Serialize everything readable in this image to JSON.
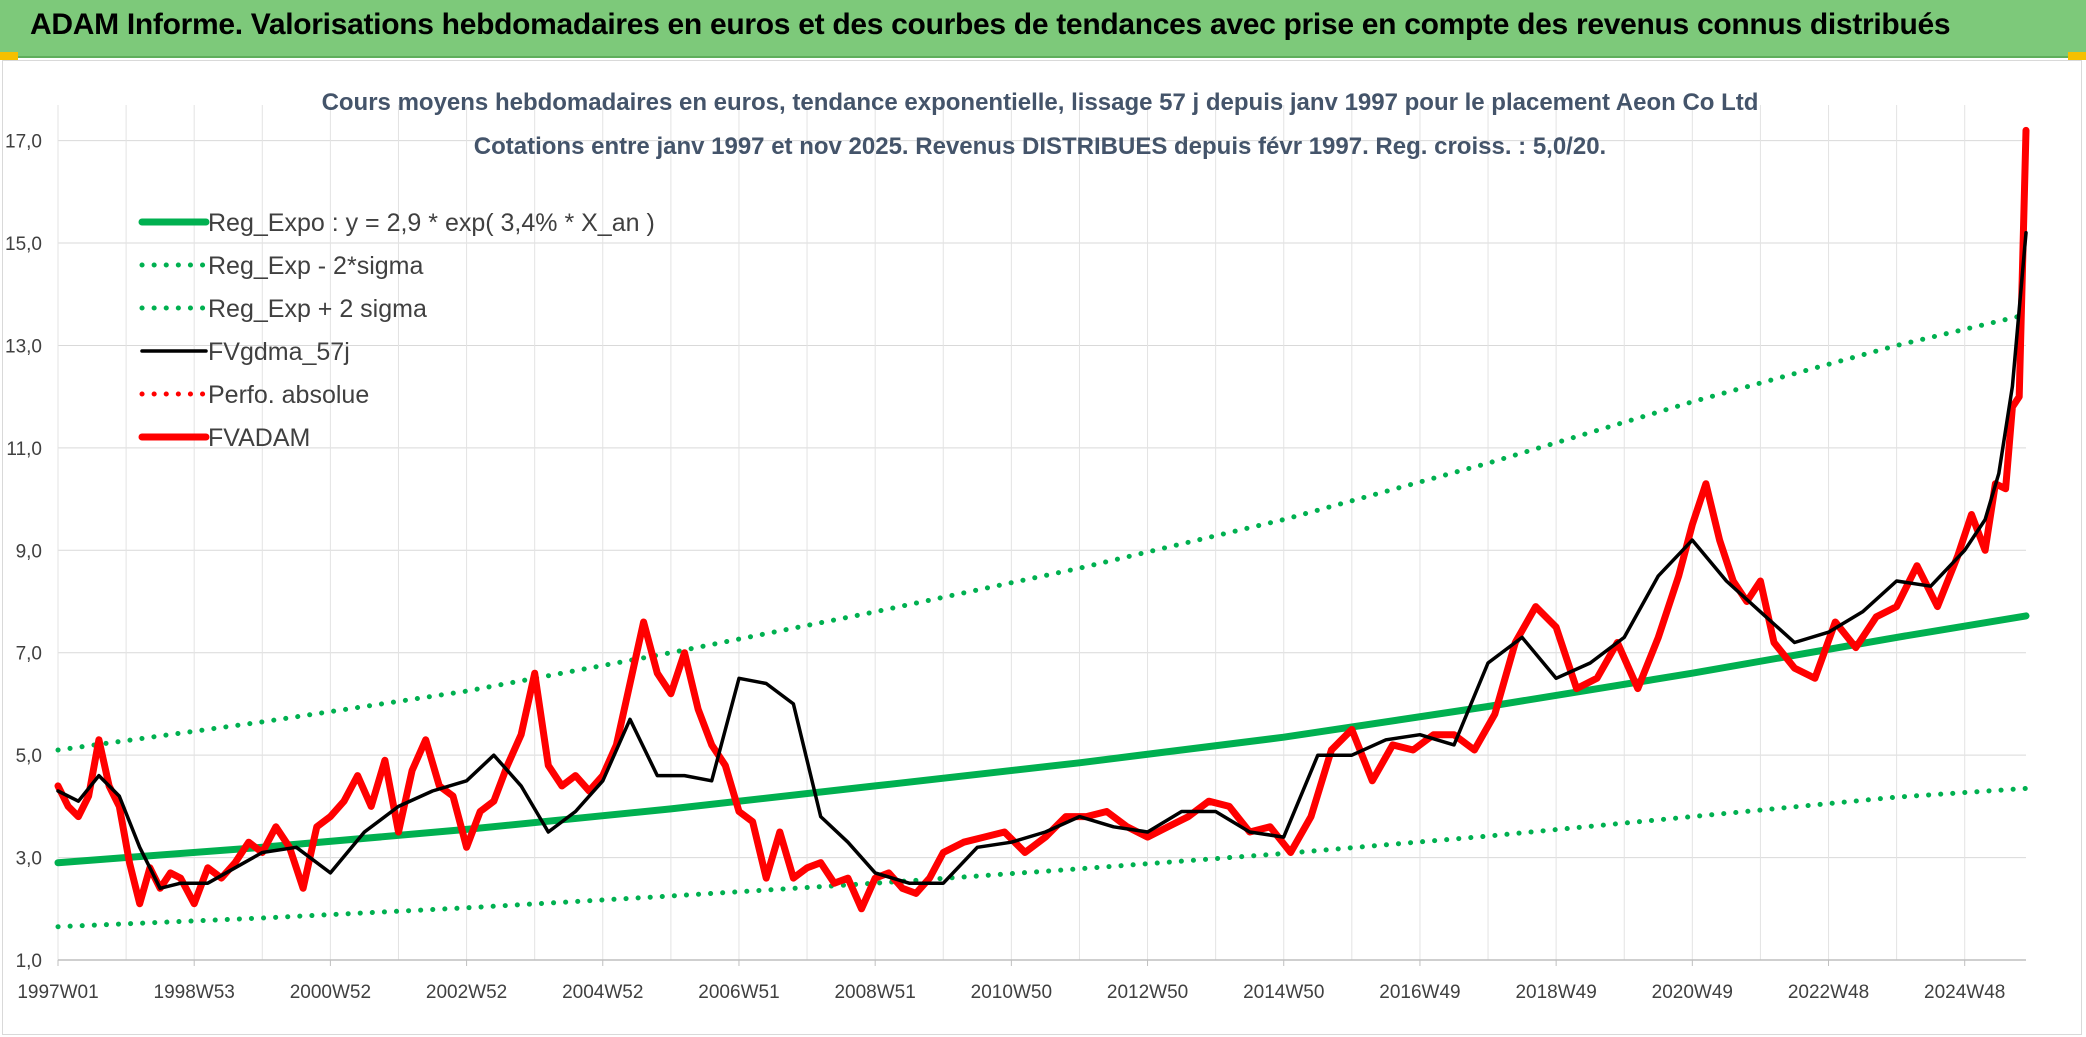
{
  "banner": {
    "title": "ADAM Informe. Valorisations hebdomadaires en euros et des courbes de tendances avec prise en compte des revenus connus distribués"
  },
  "colors": {
    "banner_bg": "#7dc97a",
    "regression": "#00b050",
    "smoothed": "#000000",
    "price": "#ff0000",
    "grid": "#d9d9d9"
  },
  "chart_data": {
    "type": "line",
    "title": "Cours moyens hebdomadaires en euros, tendance exponentielle, lissage 57 j depuis janv 1997 pour le placement Aeon Co Ltd",
    "subtitle": "Cotations entre janv 1997 et nov 2025. Revenus DISTRIBUES depuis févr 1997. Reg. croiss. : 5,0/20.",
    "xlabel": "",
    "ylabel": "",
    "ylim": [
      1,
      17.5
    ],
    "y_ticks": [
      "1,0",
      "3,0",
      "5,0",
      "7,0",
      "9,0",
      "11,0",
      "13,0",
      "15,0",
      "17,0"
    ],
    "x_ticks": [
      "1997W01",
      "1998W53",
      "2000W52",
      "2002W52",
      "2004W52",
      "2006W51",
      "2008W51",
      "2010W50",
      "2012W50",
      "2014W50",
      "2016W49",
      "2018W49",
      "2020W49",
      "2022W48",
      "2024W48"
    ],
    "x_tick_years": [
      1997.0,
      1999.0,
      2001.0,
      2003.0,
      2005.0,
      2007.0,
      2009.0,
      2011.0,
      2013.0,
      2015.0,
      2017.0,
      2019.0,
      2021.0,
      2023.0,
      2025.0
    ],
    "xlim": [
      1997.0,
      2025.9
    ],
    "grid": true,
    "legend_position": "top-left",
    "series": [
      {
        "name": "Reg_Expo : y = 2,9 * exp( 3,4% *  X_an )",
        "style": "solid-thick",
        "color": "#00b050",
        "x": [
          1997.0,
          2000.0,
          2003.0,
          2006.0,
          2009.0,
          2012.0,
          2015.0,
          2018.0,
          2021.0,
          2024.0,
          2025.9
        ],
        "y": [
          2.9,
          3.2,
          3.55,
          3.95,
          4.4,
          4.85,
          5.35,
          5.95,
          6.6,
          7.3,
          7.72
        ]
      },
      {
        "name": "Reg_Exp - 2*sigma",
        "style": "dotted",
        "color": "#00b050",
        "x": [
          1997.0,
          2000.0,
          2003.0,
          2006.0,
          2009.0,
          2012.0,
          2015.0,
          2018.0,
          2021.0,
          2024.0,
          2025.9
        ],
        "y": [
          1.65,
          1.82,
          2.02,
          2.25,
          2.5,
          2.78,
          3.08,
          3.42,
          3.8,
          4.18,
          4.35
        ]
      },
      {
        "name": "Reg_Exp + 2 sigma",
        "style": "dotted",
        "color": "#00b050",
        "x": [
          1997.0,
          2000.0,
          2003.0,
          2006.0,
          2009.0,
          2012.0,
          2015.0,
          2018.0,
          2021.0,
          2024.0,
          2025.9
        ],
        "y": [
          5.1,
          5.65,
          6.25,
          7.0,
          7.8,
          8.65,
          9.6,
          10.7,
          11.9,
          13.0,
          13.6
        ]
      },
      {
        "name": "FVgdma_57j",
        "style": "solid",
        "color": "#000000",
        "x": [
          1997.0,
          1997.3,
          1997.6,
          1997.9,
          1998.2,
          1998.5,
          1998.8,
          1999.2,
          1999.6,
          2000.0,
          2000.5,
          2001.0,
          2001.5,
          2002.0,
          2002.5,
          2003.0,
          2003.4,
          2003.8,
          2004.2,
          2004.6,
          2005.0,
          2005.4,
          2005.8,
          2006.2,
          2006.6,
          2007.0,
          2007.4,
          2007.8,
          2008.2,
          2008.6,
          2009.0,
          2009.5,
          2010.0,
          2010.5,
          2011.0,
          2011.5,
          2012.0,
          2012.5,
          2013.0,
          2013.5,
          2014.0,
          2014.5,
          2015.0,
          2015.5,
          2016.0,
          2016.5,
          2017.0,
          2017.5,
          2018.0,
          2018.5,
          2019.0,
          2019.5,
          2020.0,
          2020.5,
          2021.0,
          2021.5,
          2022.0,
          2022.5,
          2023.0,
          2023.5,
          2024.0,
          2024.5,
          2025.0,
          2025.3,
          2025.5,
          2025.7,
          2025.9
        ],
        "y": [
          4.3,
          4.1,
          4.6,
          4.2,
          3.2,
          2.4,
          2.5,
          2.5,
          2.8,
          3.1,
          3.2,
          2.7,
          3.5,
          4.0,
          4.3,
          4.5,
          5.0,
          4.4,
          3.5,
          3.9,
          4.5,
          5.7,
          4.6,
          4.6,
          4.5,
          6.5,
          6.4,
          6.0,
          3.8,
          3.3,
          2.7,
          2.5,
          2.5,
          3.2,
          3.3,
          3.5,
          3.8,
          3.6,
          3.5,
          3.9,
          3.9,
          3.5,
          3.4,
          5.0,
          5.0,
          5.3,
          5.4,
          5.2,
          6.8,
          7.3,
          6.5,
          6.8,
          7.3,
          8.5,
          9.2,
          8.4,
          7.8,
          7.2,
          7.4,
          7.8,
          8.4,
          8.3,
          9.0,
          9.6,
          10.5,
          12.2,
          15.2
        ]
      },
      {
        "name": "Perfo. absolue",
        "style": "dotted",
        "color": "#ff0000",
        "x": [],
        "y": []
      },
      {
        "name": "FVADAM",
        "style": "solid-thick",
        "color": "#ff0000",
        "x": [
          1997.0,
          1997.15,
          1997.3,
          1997.45,
          1997.6,
          1997.75,
          1997.9,
          1998.05,
          1998.2,
          1998.35,
          1998.5,
          1998.65,
          1998.8,
          1999.0,
          1999.2,
          1999.4,
          1999.6,
          1999.8,
          2000.0,
          2000.2,
          2000.4,
          2000.6,
          2000.8,
          2001.0,
          2001.2,
          2001.4,
          2001.6,
          2001.8,
          2002.0,
          2002.2,
          2002.4,
          2002.6,
          2002.8,
          2003.0,
          2003.2,
          2003.4,
          2003.6,
          2003.8,
          2004.0,
          2004.2,
          2004.4,
          2004.6,
          2004.8,
          2005.0,
          2005.2,
          2005.4,
          2005.6,
          2005.8,
          2006.0,
          2006.2,
          2006.4,
          2006.6,
          2006.8,
          2007.0,
          2007.2,
          2007.4,
          2007.6,
          2007.8,
          2008.0,
          2008.2,
          2008.4,
          2008.6,
          2008.8,
          2009.0,
          2009.2,
          2009.4,
          2009.6,
          2009.8,
          2010.0,
          2010.3,
          2010.6,
          2010.9,
          2011.2,
          2011.5,
          2011.8,
          2012.1,
          2012.4,
          2012.7,
          2013.0,
          2013.3,
          2013.6,
          2013.9,
          2014.2,
          2014.5,
          2014.8,
          2015.1,
          2015.4,
          2015.7,
          2016.0,
          2016.3,
          2016.6,
          2016.9,
          2017.2,
          2017.5,
          2017.8,
          2018.1,
          2018.4,
          2018.7,
          2019.0,
          2019.3,
          2019.6,
          2019.9,
          2020.2,
          2020.5,
          2020.8,
          2021.0,
          2021.2,
          2021.4,
          2021.6,
          2021.8,
          2022.0,
          2022.2,
          2022.5,
          2022.8,
          2023.1,
          2023.4,
          2023.7,
          2024.0,
          2024.3,
          2024.6,
          2024.9,
          2025.1,
          2025.3,
          2025.45,
          2025.6,
          2025.7,
          2025.8,
          2025.9
        ],
        "y": [
          4.4,
          4.0,
          3.8,
          4.2,
          5.3,
          4.4,
          4.0,
          2.9,
          2.1,
          2.8,
          2.4,
          2.7,
          2.6,
          2.1,
          2.8,
          2.6,
          2.9,
          3.3,
          3.1,
          3.6,
          3.2,
          2.4,
          3.6,
          3.8,
          4.1,
          4.6,
          4.0,
          4.9,
          3.5,
          4.7,
          5.3,
          4.4,
          4.2,
          3.2,
          3.9,
          4.1,
          4.8,
          5.4,
          6.6,
          4.8,
          4.4,
          4.6,
          4.3,
          4.6,
          5.2,
          6.4,
          7.6,
          6.6,
          6.2,
          7.0,
          5.9,
          5.2,
          4.8,
          3.9,
          3.7,
          2.6,
          3.5,
          2.6,
          2.8,
          2.9,
          2.5,
          2.6,
          2.0,
          2.6,
          2.7,
          2.4,
          2.3,
          2.6,
          3.1,
          3.3,
          3.4,
          3.5,
          3.1,
          3.4,
          3.8,
          3.8,
          3.9,
          3.6,
          3.4,
          3.6,
          3.8,
          4.1,
          4.0,
          3.5,
          3.6,
          3.1,
          3.8,
          5.1,
          5.5,
          4.5,
          5.2,
          5.1,
          5.4,
          5.4,
          5.1,
          5.8,
          7.2,
          7.9,
          7.5,
          6.3,
          6.5,
          7.2,
          6.3,
          7.3,
          8.5,
          9.5,
          10.3,
          9.2,
          8.4,
          8.0,
          8.4,
          7.2,
          6.7,
          6.5,
          7.6,
          7.1,
          7.7,
          7.9,
          8.7,
          7.9,
          8.9,
          9.7,
          9.0,
          10.3,
          10.2,
          11.8,
          12.0,
          17.2
        ]
      }
    ]
  }
}
